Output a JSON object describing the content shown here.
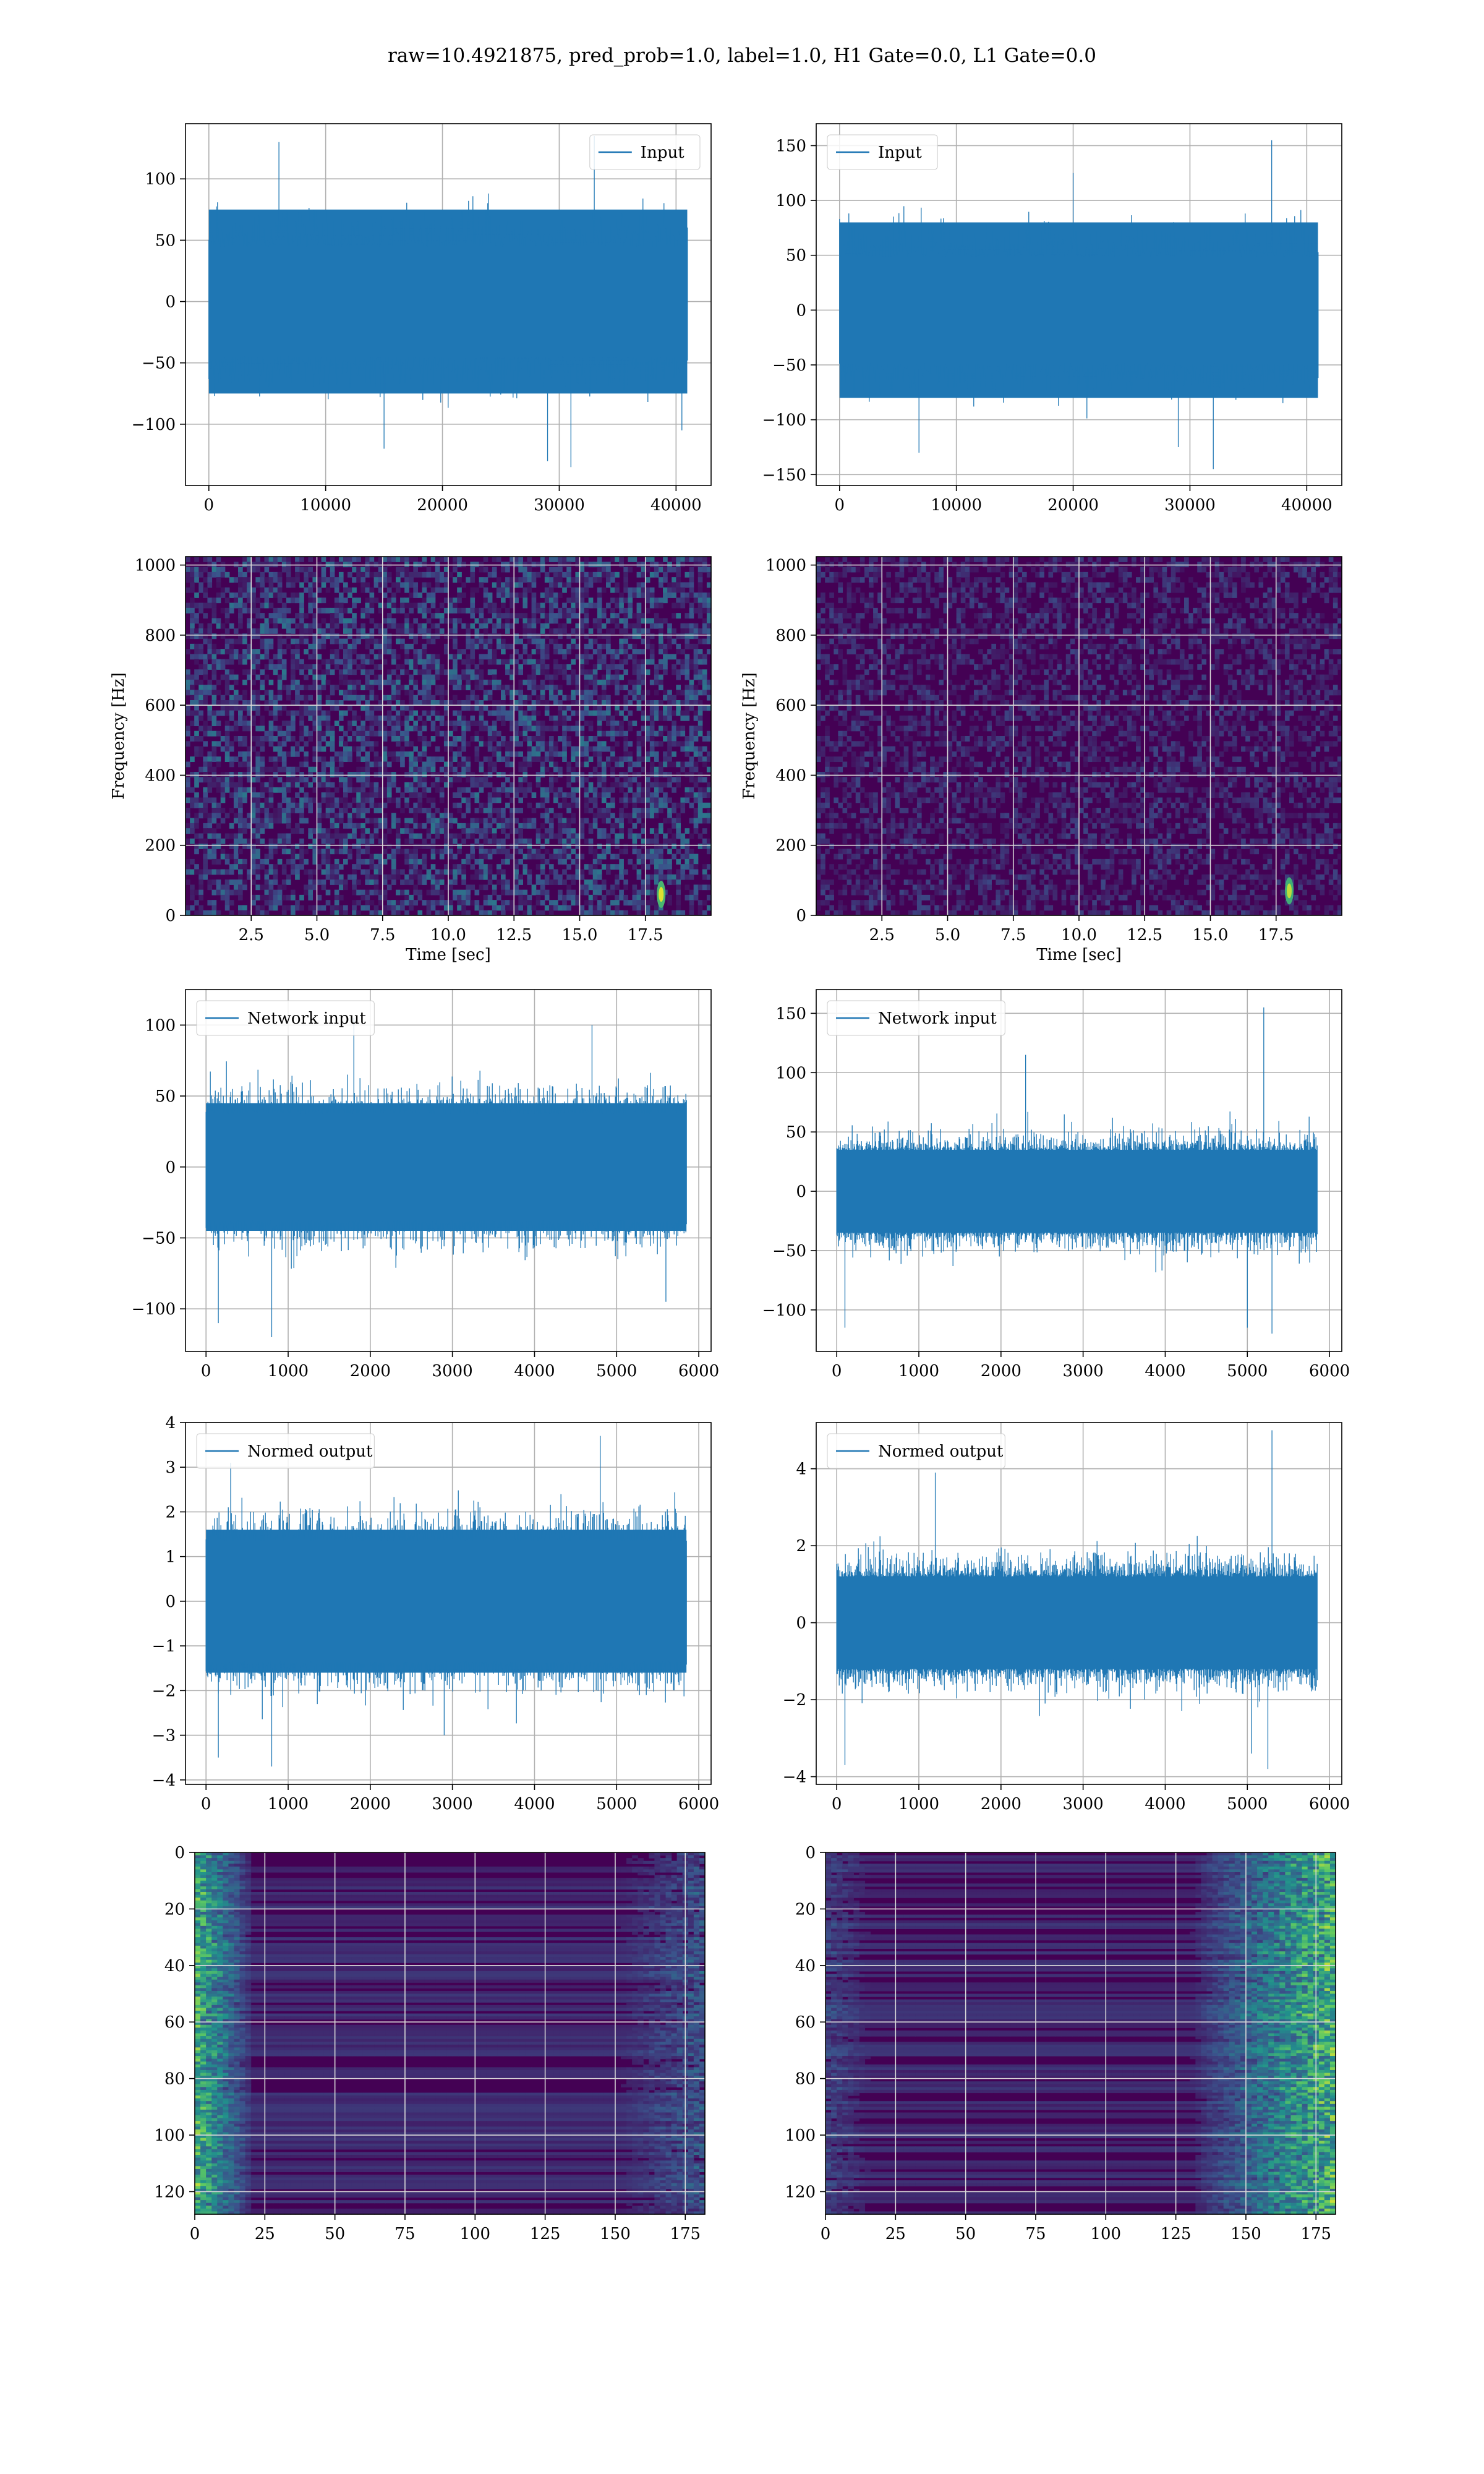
{
  "figure": {
    "suptitle": "raw=10.4921875, pred_prob=1.0, label=1.0, H1 Gate=0.0, L1 Gate=0.0"
  },
  "colors": {
    "line": "#1f77b4",
    "grid": "#b0b0b0",
    "viridis_low": "#440154",
    "viridis_mid": "#21918c",
    "viridis_high": "#fde725"
  },
  "chart_data": [
    {
      "id": "h1-input",
      "type": "line",
      "legend": "Input",
      "legend_loc": "upper right",
      "xlim": [
        -2000,
        43000
      ],
      "ylim": [
        -150,
        145
      ],
      "xticks": [
        0,
        10000,
        20000,
        30000,
        40000
      ],
      "xticklabels": [
        "0",
        "10000",
        "20000",
        "30000",
        "40000"
      ],
      "yticks": [
        -100,
        -50,
        0,
        50,
        100
      ],
      "yticklabels": [
        "−100",
        "−50",
        "0",
        "50",
        "100"
      ],
      "grid": true,
      "signal": {
        "x_start": 0,
        "x_end": 40960,
        "band": 75,
        "base_amp": 60,
        "spikes": [
          [
            6000,
            130
          ],
          [
            15000,
            -120
          ],
          [
            29000,
            -130
          ],
          [
            31000,
            -135
          ],
          [
            33000,
            135
          ],
          [
            40500,
            -105
          ]
        ]
      }
    },
    {
      "id": "l1-input",
      "type": "line",
      "legend": "Input",
      "legend_loc": "upper left",
      "xlim": [
        -2000,
        43000
      ],
      "ylim": [
        -160,
        170
      ],
      "xticks": [
        0,
        10000,
        20000,
        30000,
        40000
      ],
      "xticklabels": [
        "0",
        "10000",
        "20000",
        "30000",
        "40000"
      ],
      "yticks": [
        -150,
        -100,
        -50,
        0,
        50,
        100,
        150
      ],
      "yticklabels": [
        "−150",
        "−100",
        "−50",
        "0",
        "50",
        "100",
        "150"
      ],
      "grid": true,
      "signal": {
        "x_start": 0,
        "x_end": 40960,
        "band": 80,
        "base_amp": 65,
        "spikes": [
          [
            6800,
            -130
          ],
          [
            20000,
            125
          ],
          [
            32000,
            -145
          ],
          [
            37000,
            155
          ],
          [
            29000,
            -125
          ]
        ]
      }
    },
    {
      "id": "h1-spectrogram",
      "type": "heatmap",
      "colormap": "viridis",
      "xlabel": "Time [sec]",
      "ylabel": "Frequency [Hz]",
      "xlim": [
        0,
        20.0
      ],
      "ylim": [
        0,
        1024
      ],
      "xticks": [
        2.5,
        5.0,
        7.5,
        10.0,
        12.5,
        15.0,
        17.5
      ],
      "xticklabels": [
        "2.5",
        "5.0",
        "7.5",
        "10.0",
        "12.5",
        "15.0",
        "17.5"
      ],
      "yticks": [
        0,
        200,
        400,
        600,
        800,
        1000
      ],
      "yticklabels": [
        "0",
        "200",
        "400",
        "600",
        "800",
        "1000"
      ],
      "grid": true,
      "noise_level": 0.22,
      "hotspots": [
        [
          18.1,
          60,
          0.95
        ]
      ]
    },
    {
      "id": "l1-spectrogram",
      "type": "heatmap",
      "colormap": "viridis",
      "xlabel": "Time [sec]",
      "ylabel": "Frequency [Hz]",
      "xlim": [
        0,
        20.0
      ],
      "ylim": [
        0,
        1024
      ],
      "xticks": [
        2.5,
        5.0,
        7.5,
        10.0,
        12.5,
        15.0,
        17.5
      ],
      "xticklabels": [
        "2.5",
        "5.0",
        "7.5",
        "10.0",
        "12.5",
        "15.0",
        "17.5"
      ],
      "yticks": [
        0,
        200,
        400,
        600,
        800,
        1000
      ],
      "yticklabels": [
        "0",
        "200",
        "400",
        "600",
        "800",
        "1000"
      ],
      "grid": true,
      "noise_level": 0.12,
      "hotspots": [
        [
          18.0,
          70,
          0.9
        ]
      ]
    },
    {
      "id": "h1-network-input",
      "type": "line",
      "legend": "Network input",
      "legend_loc": "upper left",
      "xlim": [
        -250,
        6150
      ],
      "ylim": [
        -130,
        125
      ],
      "xticks": [
        0,
        1000,
        2000,
        3000,
        4000,
        5000,
        6000
      ],
      "xticklabels": [
        "0",
        "1000",
        "2000",
        "3000",
        "4000",
        "5000",
        "6000"
      ],
      "yticks": [
        -100,
        -50,
        0,
        50,
        100
      ],
      "yticklabels": [
        "−100",
        "−50",
        "0",
        "50",
        "100"
      ],
      "grid": true,
      "signal": {
        "x_start": 0,
        "x_end": 5850,
        "band": 45,
        "base_amp": 50,
        "spikes": [
          [
            150,
            -110
          ],
          [
            800,
            -120
          ],
          [
            1800,
            105
          ],
          [
            4700,
            100
          ],
          [
            5600,
            -95
          ]
        ]
      }
    },
    {
      "id": "l1-network-input",
      "type": "line",
      "legend": "Network input",
      "legend_loc": "upper left",
      "xlim": [
        -250,
        6150
      ],
      "ylim": [
        -135,
        170
      ],
      "xticks": [
        0,
        1000,
        2000,
        3000,
        4000,
        5000,
        6000
      ],
      "xticklabels": [
        "0",
        "1000",
        "2000",
        "3000",
        "4000",
        "5000",
        "6000"
      ],
      "yticks": [
        -100,
        -50,
        0,
        50,
        100,
        150
      ],
      "yticklabels": [
        "−100",
        "−50",
        "0",
        "50",
        "100",
        "150"
      ],
      "grid": true,
      "signal": {
        "x_start": 0,
        "x_end": 5850,
        "band": 35,
        "base_amp": 45,
        "spikes": [
          [
            100,
            -115
          ],
          [
            2300,
            115
          ],
          [
            5200,
            155
          ],
          [
            5300,
            -120
          ],
          [
            5000,
            -115
          ]
        ]
      }
    },
    {
      "id": "h1-normed-output",
      "type": "line",
      "legend": "Normed output",
      "legend_loc": "upper left",
      "xlim": [
        -250,
        6150
      ],
      "ylim": [
        -4.1,
        4.0
      ],
      "xticks": [
        0,
        1000,
        2000,
        3000,
        4000,
        5000,
        6000
      ],
      "xticklabels": [
        "0",
        "1000",
        "2000",
        "3000",
        "4000",
        "5000",
        "6000"
      ],
      "yticks": [
        -4,
        -3,
        -2,
        -1,
        0,
        1,
        2,
        3,
        4
      ],
      "yticklabels": [
        "−4",
        "−3",
        "−2",
        "−1",
        "0",
        "1",
        "2",
        "3",
        "4"
      ],
      "grid": true,
      "signal": {
        "x_start": 0,
        "x_end": 5850,
        "band": 1.6,
        "base_amp": 1.8,
        "spikes": [
          [
            150,
            -3.5
          ],
          [
            800,
            -3.7
          ],
          [
            4800,
            3.7
          ],
          [
            300,
            3.1
          ],
          [
            2900,
            -3.0
          ]
        ]
      }
    },
    {
      "id": "l1-normed-output",
      "type": "line",
      "legend": "Normed output",
      "legend_loc": "upper left",
      "xlim": [
        -250,
        6150
      ],
      "ylim": [
        -4.2,
        5.2
      ],
      "xticks": [
        0,
        1000,
        2000,
        3000,
        4000,
        5000,
        6000
      ],
      "xticklabels": [
        "0",
        "1000",
        "2000",
        "3000",
        "4000",
        "5000",
        "6000"
      ],
      "yticks": [
        -4,
        -2,
        0,
        2,
        4
      ],
      "yticklabels": [
        "−4",
        "−2",
        "0",
        "2",
        "4"
      ],
      "grid": true,
      "signal": {
        "x_start": 0,
        "x_end": 5850,
        "band": 1.2,
        "base_amp": 1.6,
        "spikes": [
          [
            100,
            -3.7
          ],
          [
            1200,
            3.9
          ],
          [
            5300,
            5.0
          ],
          [
            5250,
            -3.8
          ],
          [
            5050,
            -3.4
          ]
        ]
      }
    },
    {
      "id": "h1-feature-map",
      "type": "heatmap",
      "colormap": "viridis",
      "xlim": [
        0,
        182
      ],
      "ylim": [
        128,
        0
      ],
      "xticks": [
        0,
        25,
        50,
        75,
        100,
        125,
        150,
        175
      ],
      "xticklabels": [
        "0",
        "25",
        "50",
        "75",
        "100",
        "125",
        "150",
        "175"
      ],
      "yticks": [
        0,
        20,
        40,
        60,
        80,
        100,
        120
      ],
      "yticklabels": [
        "0",
        "20",
        "40",
        "60",
        "80",
        "100",
        "120"
      ],
      "grid": true,
      "active_edges": "left"
    },
    {
      "id": "l1-feature-map",
      "type": "heatmap",
      "colormap": "viridis",
      "xlim": [
        0,
        182
      ],
      "ylim": [
        128,
        0
      ],
      "xticks": [
        0,
        25,
        50,
        75,
        100,
        125,
        150,
        175
      ],
      "xticklabels": [
        "0",
        "25",
        "50",
        "75",
        "100",
        "125",
        "150",
        "175"
      ],
      "yticks": [
        0,
        20,
        40,
        60,
        80,
        100,
        120
      ],
      "yticklabels": [
        "0",
        "20",
        "40",
        "60",
        "80",
        "100",
        "120"
      ],
      "grid": true,
      "active_edges": "right"
    }
  ]
}
